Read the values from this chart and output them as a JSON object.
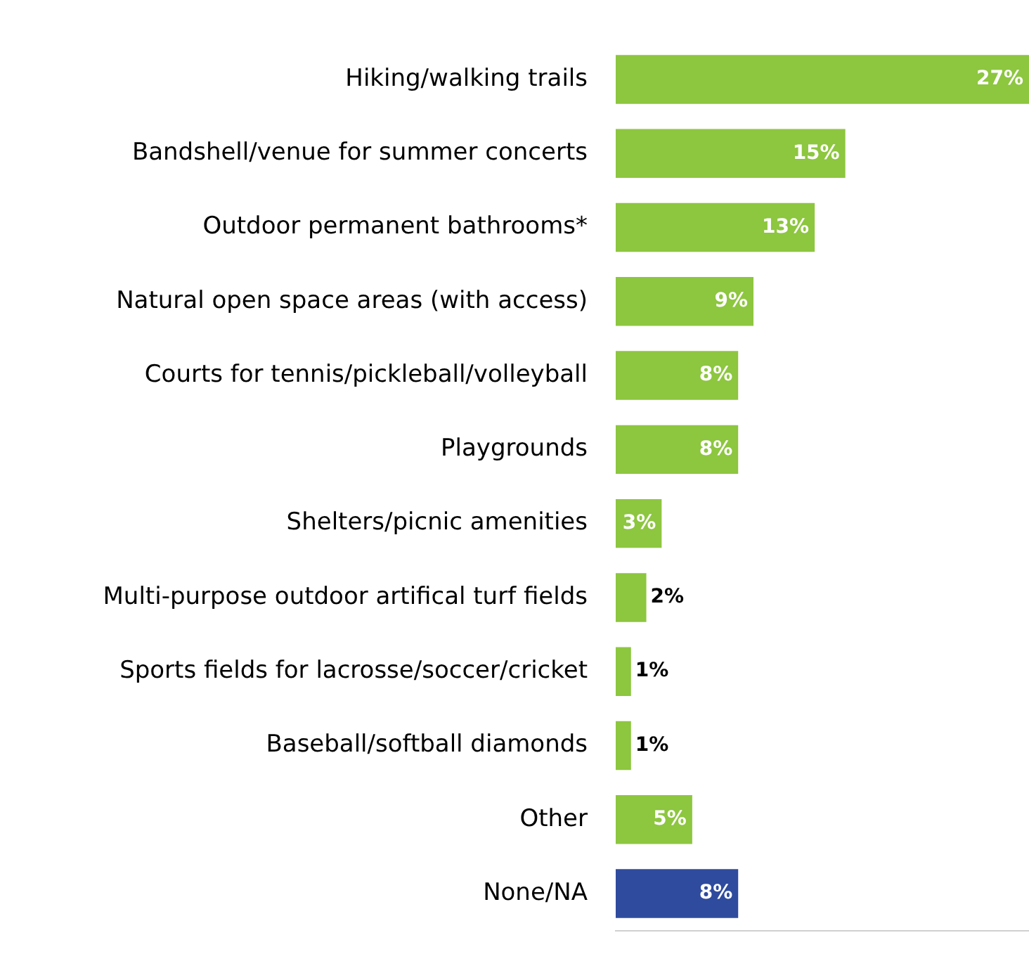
{
  "chart_data": {
    "type": "bar",
    "orientation": "horizontal",
    "categories": [
      "Hiking/walking trails",
      "Bandshell/venue for summer concerts",
      "Outdoor permanent bathrooms*",
      "Natural open space areas (with access)",
      "Courts for tennis/pickleball/volleyball",
      "Playgrounds",
      "Shelters/picnic amenities",
      "Multi-purpose outdoor artifical turf fields",
      "Sports fields for lacrosse/soccer/cricket",
      "Baseball/softball diamonds",
      "Other",
      "None/NA"
    ],
    "values": [
      27,
      15,
      13,
      9,
      8,
      8,
      3,
      2,
      1,
      1,
      5,
      8
    ],
    "value_labels": [
      "27%",
      "15%",
      "13%",
      "9%",
      "8%",
      "8%",
      "3%",
      "2%",
      "1%",
      "1%",
      "5%",
      "8%"
    ],
    "colors": [
      "#8dc63f",
      "#8dc63f",
      "#8dc63f",
      "#8dc63f",
      "#8dc63f",
      "#8dc63f",
      "#8dc63f",
      "#8dc63f",
      "#8dc63f",
      "#8dc63f",
      "#8dc63f",
      "#2e4b9e"
    ],
    "xlim": [
      0,
      27
    ],
    "grid": false,
    "legend": false,
    "tick_labels": "y"
  }
}
